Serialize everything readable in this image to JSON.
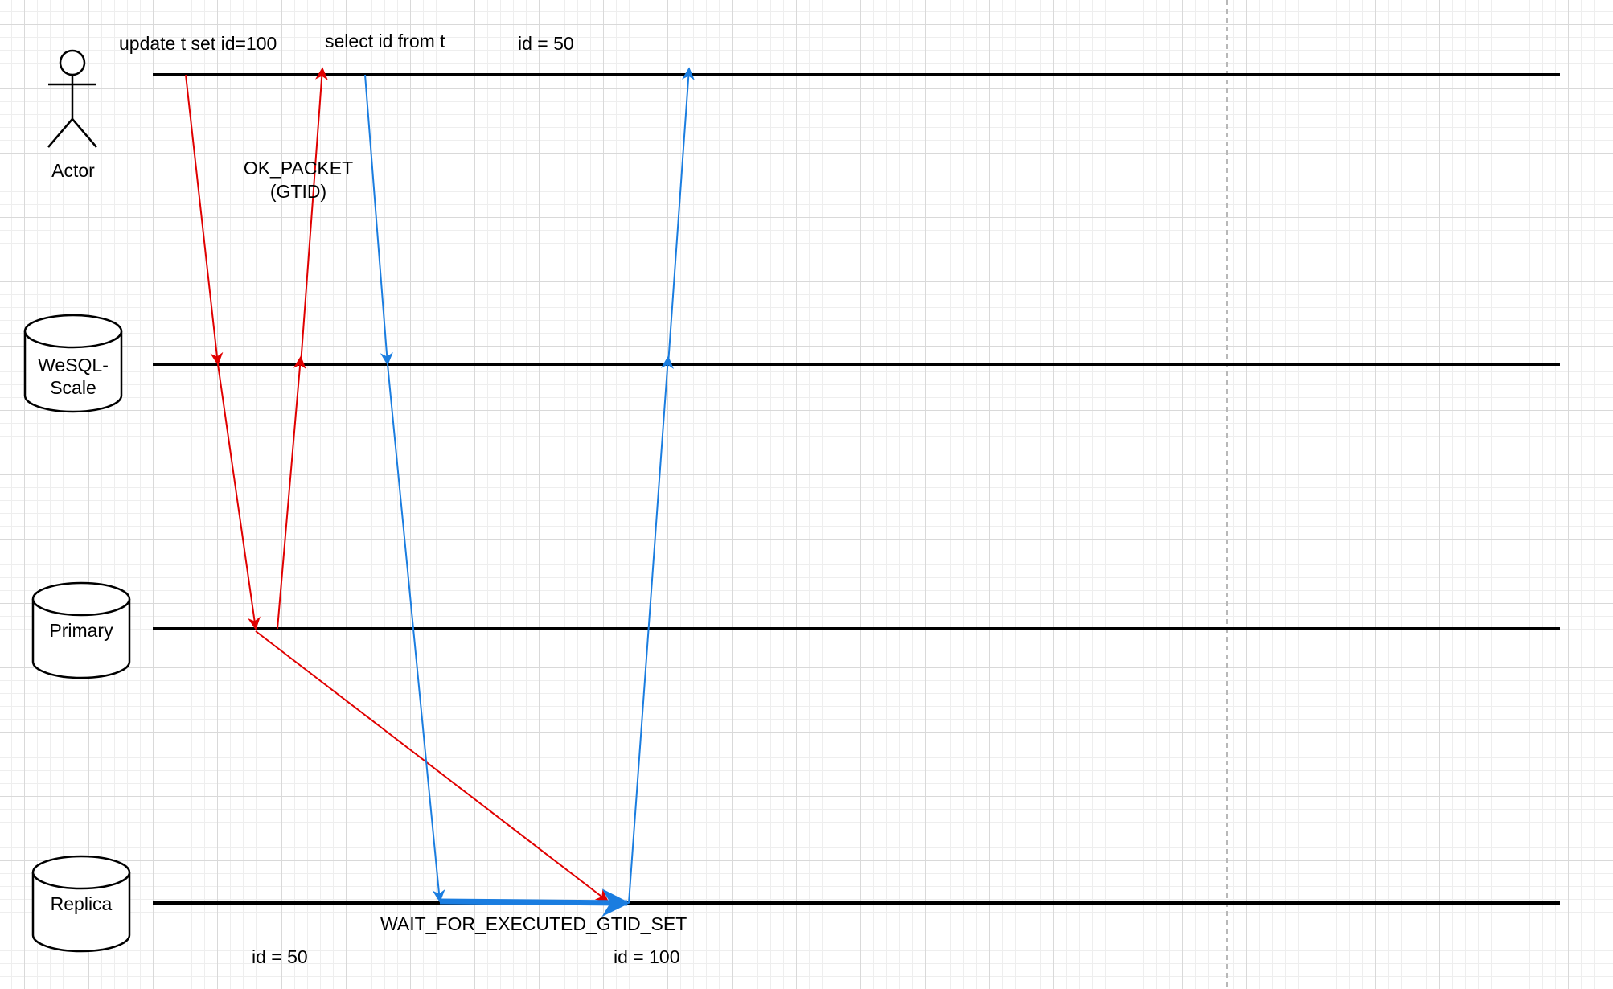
{
  "participants": {
    "actor": "Actor",
    "proxy_line1": "WeSQL-",
    "proxy_line2": "Scale",
    "primary": "Primary",
    "replica": "Replica"
  },
  "messages": {
    "update": "update t set id=100",
    "select": "select id from t",
    "actor_result": "id = 50",
    "ok_packet_line1": "OK_PACKET",
    "ok_packet_line2": "(GTID)",
    "wait": "WAIT_FOR_EXECUTED_GTID_SET",
    "replica_before": "id = 50",
    "replica_after": "id = 100"
  },
  "colors": {
    "write_path": "#e00000",
    "read_path": "#1a7de0",
    "lifeline": "#000000",
    "grid": "#d9d9d9"
  }
}
